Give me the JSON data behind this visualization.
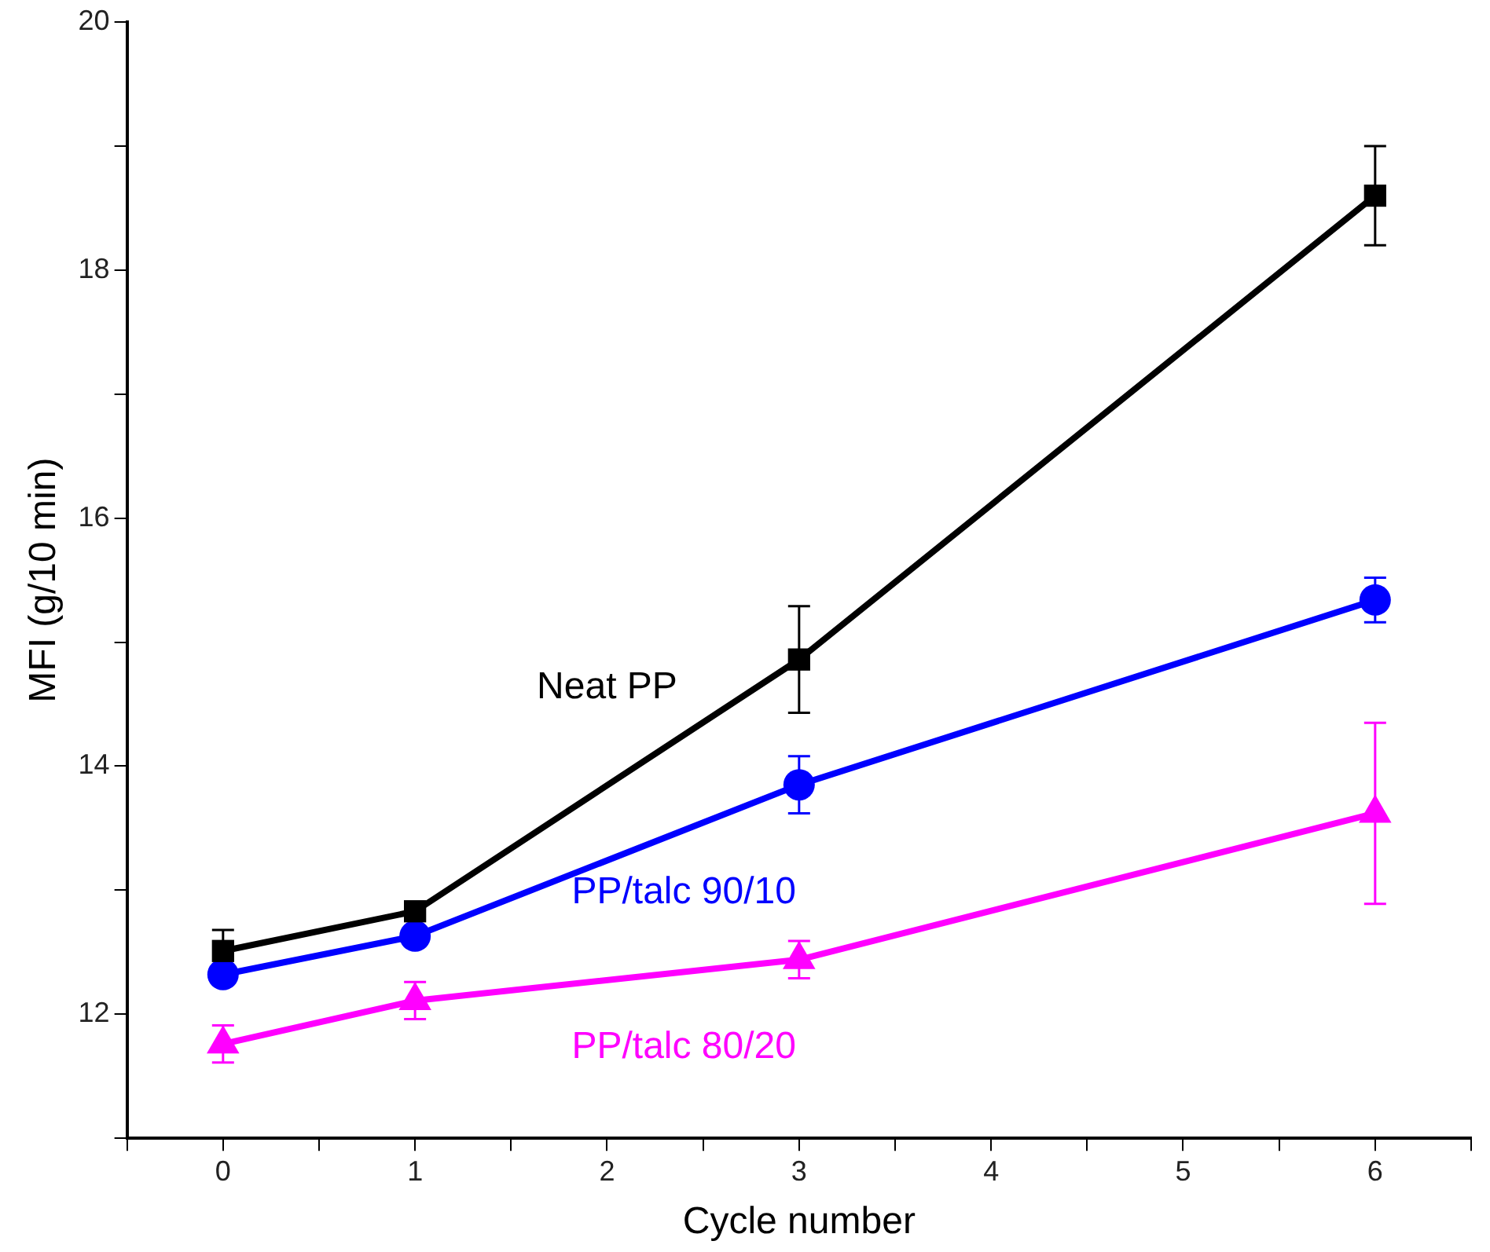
{
  "chart_data": {
    "type": "line",
    "xlabel": "Cycle number",
    "ylabel": "MFI (g/10 min)",
    "xlim": [
      -0.5,
      6.5
    ],
    "xticks": [
      {
        "value": -0.5,
        "label": null
      },
      0,
      {
        "value": 0.5,
        "label": null
      },
      1,
      {
        "value": 1.5,
        "label": null
      },
      2,
      {
        "value": 2.5,
        "label": null
      },
      3,
      {
        "value": 3.5,
        "label": null
      },
      4,
      {
        "value": 4.5,
        "label": null
      },
      5,
      {
        "value": 5.5,
        "label": null
      },
      6,
      {
        "value": 6.5,
        "label": null
      }
    ],
    "ylim": [
      11,
      20
    ],
    "yticks": [
      {
        "value": 11,
        "label": null
      },
      12,
      {
        "value": 13,
        "label": null
      },
      14,
      {
        "value": 15,
        "label": null
      },
      16,
      {
        "value": 17,
        "label": null
      },
      18,
      {
        "value": 19,
        "label": null
      },
      20
    ],
    "x": [
      0,
      1,
      3,
      6
    ],
    "grid": false,
    "legend": false,
    "line_style": "solid",
    "series": [
      {
        "name": "Neat PP",
        "color": "#000000",
        "marker": "square",
        "values": [
          12.51,
          12.83,
          14.86,
          18.6
        ],
        "errors": [
          0.17,
          null,
          0.43,
          0.4
        ]
      },
      {
        "name": "PP/talc 90/10",
        "color": "#0000ff",
        "marker": "circle",
        "values": [
          12.32,
          12.63,
          13.85,
          15.34
        ],
        "errors": [
          null,
          null,
          0.23,
          0.18
        ]
      },
      {
        "name": "PP/talc 80/20",
        "color": "#ff00ff",
        "marker": "triangle",
        "values": [
          11.76,
          12.11,
          12.44,
          13.62
        ],
        "errors": [
          0.15,
          0.15,
          0.15,
          0.73
        ]
      }
    ]
  }
}
